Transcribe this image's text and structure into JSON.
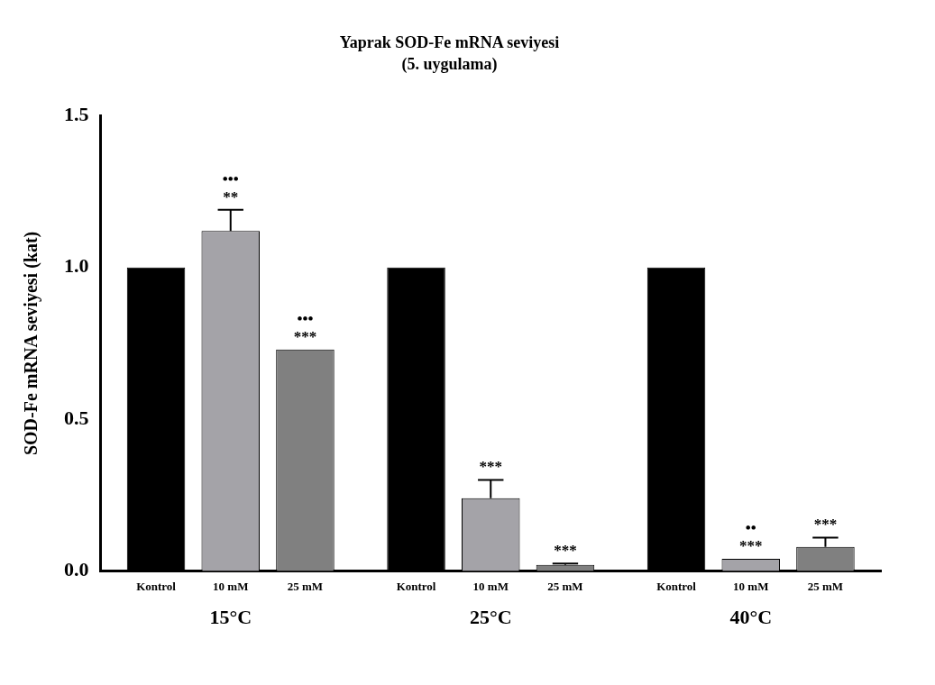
{
  "chart_data": {
    "type": "bar",
    "title": "Yaprak SOD-Fe mRNA seviyesi",
    "subtitle": "(5. uygulama)",
    "ylabel": "SOD-Fe mRNA seviyesi (kat)",
    "categories": [
      "15°C",
      "25°C",
      "40°C"
    ],
    "series": [
      {
        "name": "Kontrol",
        "color": "#000000",
        "values": [
          1.0,
          1.0,
          1.0
        ]
      },
      {
        "name": "10 mM",
        "color": "#a4a3a8",
        "values": [
          1.12,
          0.24,
          0.04
        ],
        "errors": [
          0.07,
          0.06,
          null
        ],
        "value_labels": [
          "•••\n**",
          "***",
          "••\n***"
        ]
      },
      {
        "name": "25 mM",
        "color": "#808080",
        "values": [
          0.73,
          0.02,
          0.08
        ],
        "errors": [
          null,
          0.005,
          0.03
        ],
        "value_labels": [
          "•••\n***",
          "***",
          "***"
        ]
      }
    ],
    "ylim": [
      0,
      1.5
    ],
    "yticks": [
      {
        "value": 0,
        "label": "0.0"
      },
      {
        "value": 0.5,
        "label": "0.5"
      },
      {
        "value": 1,
        "label": "1.0"
      },
      {
        "value": 1.5,
        "label": "1.5"
      }
    ],
    "grid": false,
    "legend": false
  }
}
